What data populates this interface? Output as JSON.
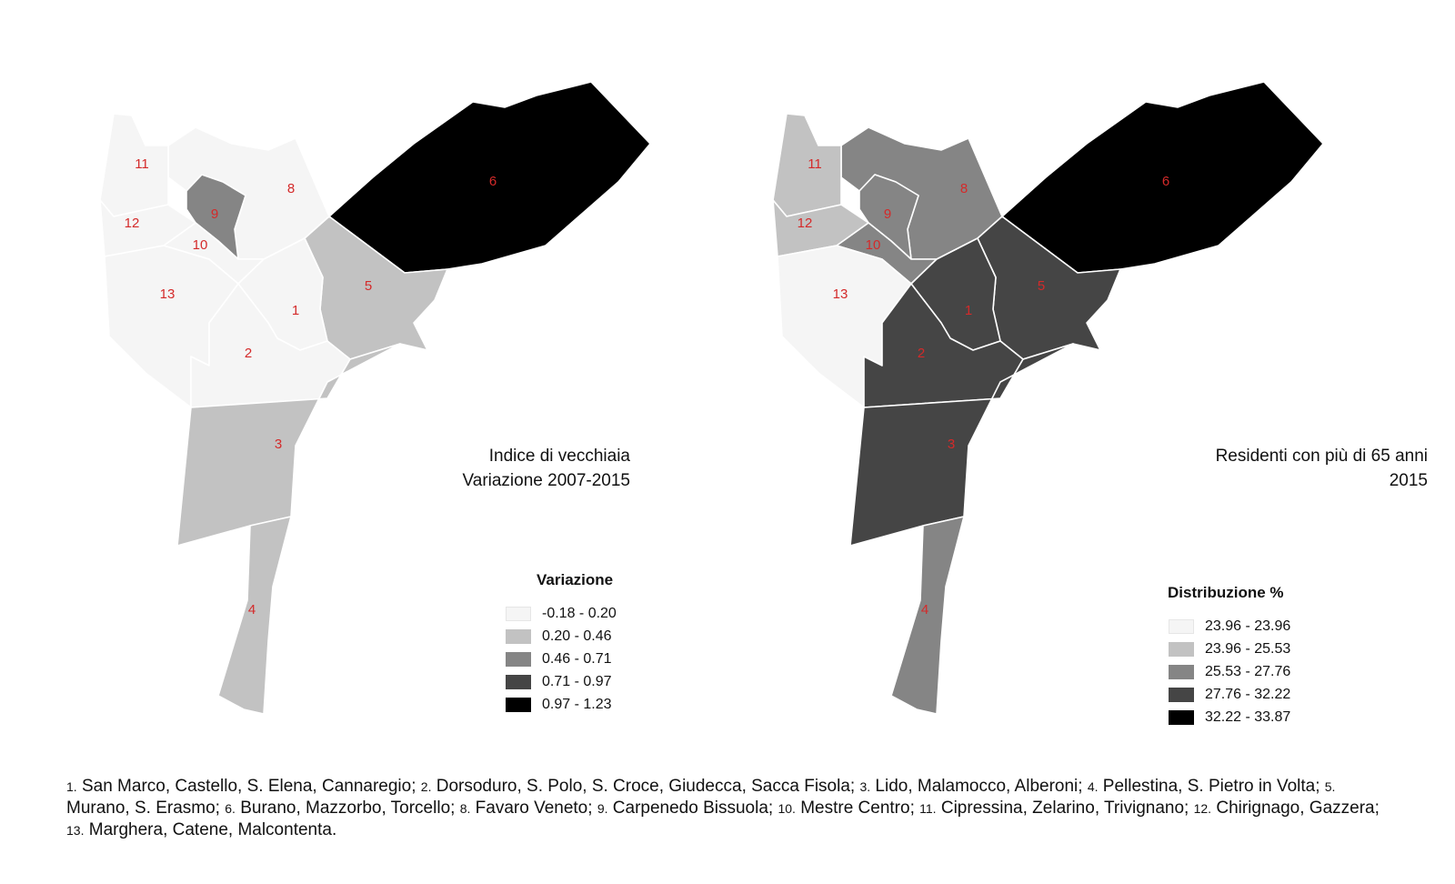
{
  "left_map": {
    "title_line1": "Indice di vecchiaia",
    "title_line2": "Variazione 2007-2015",
    "legend": {
      "title": "Variazione",
      "classes": [
        {
          "label": "-0.18 - 0.20",
          "color": "#f5f5f5"
        },
        {
          "label": "0.20 - 0.46",
          "color": "#c2c2c2"
        },
        {
          "label": "0.46 - 0.71",
          "color": "#858585"
        },
        {
          "label": "0.71 - 0.97",
          "color": "#454545"
        },
        {
          "label": "0.97 - 1.23",
          "color": "#000000"
        }
      ]
    },
    "district_class": {
      "1": 0,
      "2": 0,
      "3": 1,
      "4": 1,
      "5": 1,
      "6": 4,
      "8": 0,
      "9": 2,
      "10": 0,
      "11": 0,
      "12": 0,
      "13": 0
    }
  },
  "right_map": {
    "title_line1": "Residenti con più di 65 anni",
    "title_line2": "2015",
    "legend": {
      "title": "Distribuzione %",
      "classes": [
        {
          "label": "23.96 - 23.96",
          "color": "#f5f5f5"
        },
        {
          "label": "23.96 - 25.53",
          "color": "#c2c2c2"
        },
        {
          "label": "25.53 - 27.76",
          "color": "#858585"
        },
        {
          "label": "27.76 - 32.22",
          "color": "#454545"
        },
        {
          "label": "32.22 - 33.87",
          "color": "#000000"
        }
      ]
    },
    "district_class": {
      "1": 3,
      "2": 3,
      "3": 3,
      "4": 2,
      "5": 3,
      "6": 4,
      "8": 2,
      "9": 2,
      "10": 2,
      "11": 1,
      "12": 1,
      "13": 0
    }
  },
  "district_labels": {
    "d1": "1",
    "d2": "2",
    "d3": "3",
    "d4": "4",
    "d5": "5",
    "d6": "6",
    "d8": "8",
    "d9": "9",
    "d10": "10",
    "d11": "11",
    "d12": "12",
    "d13": "13"
  },
  "label_color": "#d42a2a",
  "footer": [
    {
      "num": "1.",
      "text": " San Marco, Castello, S. Elena, Cannaregio; "
    },
    {
      "num": "2.",
      "text": " Dorsoduro, S. Polo, S. Croce, Giudecca, Sacca Fisola; "
    },
    {
      "num": "3.",
      "text": " Lido, Malamocco, Alberoni; "
    },
    {
      "num": "4.",
      "text": " Pellestina, S. Pietro in Volta; "
    },
    {
      "num": "5.",
      "text": " Murano, S. Erasmo; "
    },
    {
      "num": "6.",
      "text": " Burano, Mazzorbo, Torcello; "
    },
    {
      "num": "8.",
      "text": " Favaro Veneto; "
    },
    {
      "num": "9.",
      "text": " Carpenedo Bissuola; "
    },
    {
      "num": "10.",
      "text": " Mestre Centro; "
    },
    {
      "num": "11.",
      "text": " Cipressina, Zelarino, Trivignano; "
    },
    {
      "num": "12.",
      "text": " Chirignago, Gazzera; "
    },
    {
      "num": "13.",
      "text": " Marghera, Catene, Malcontenta."
    }
  ]
}
